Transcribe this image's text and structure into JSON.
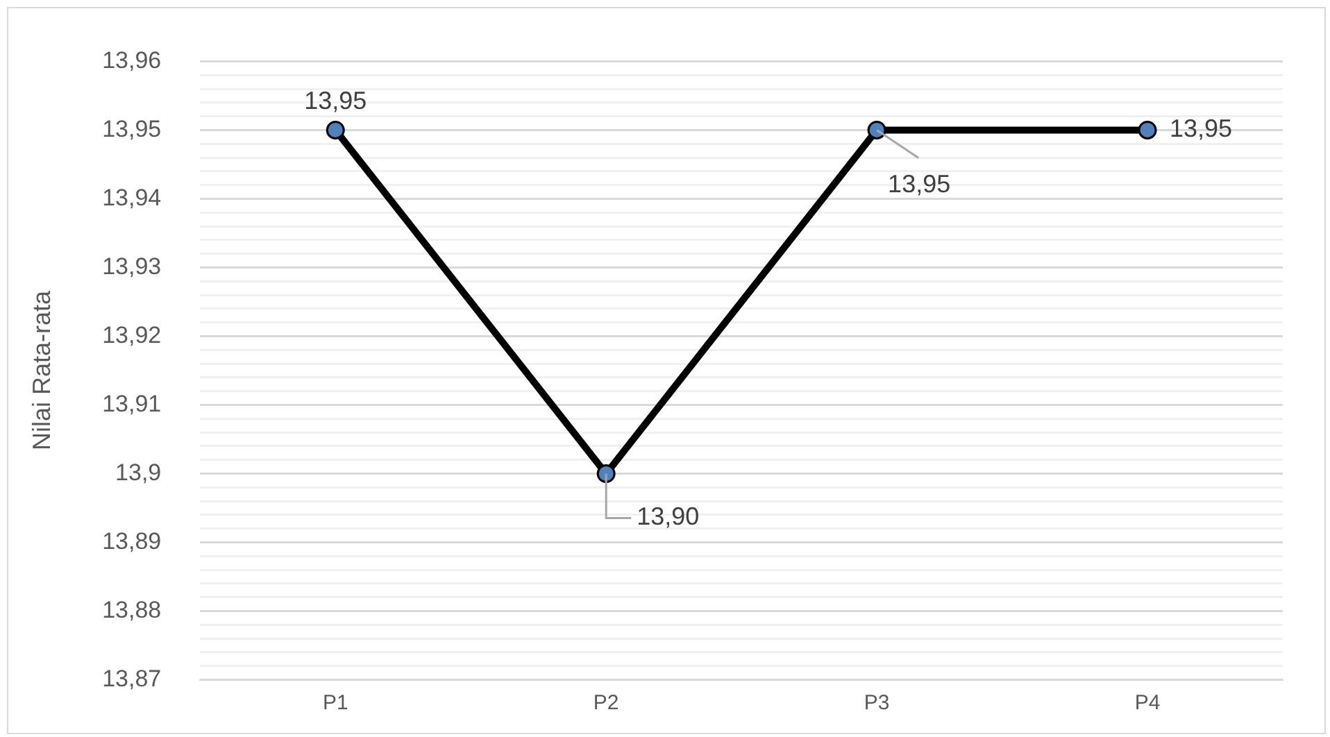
{
  "chart_data": {
    "type": "line",
    "ylabel": "Nilai Rata-rata",
    "categories": [
      "P1",
      "P2",
      "P3",
      "P4"
    ],
    "series": [
      {
        "color": "#000000",
        "colors": [
          "#4f81bd",
          "#4f81bd",
          "#4f81bd",
          "#4f81bd"
        ],
        "values": [
          13.95,
          13.9,
          13.95,
          13.95
        ],
        "value_labels": [
          "13,95",
          "13,90",
          "13,95",
          "13,95"
        ]
      }
    ],
    "ylim": [
      13.87,
      13.96
    ],
    "yticks": [
      {
        "value": 13.87,
        "label": "13,87"
      },
      {
        "value": 13.872,
        "label": null
      },
      {
        "value": 13.874,
        "label": null
      },
      {
        "value": 13.876,
        "label": null
      },
      {
        "value": 13.878,
        "label": null
      },
      {
        "value": 13.88,
        "label": "13,88"
      },
      {
        "value": 13.882,
        "label": null
      },
      {
        "value": 13.884,
        "label": null
      },
      {
        "value": 13.886,
        "label": null
      },
      {
        "value": 13.888,
        "label": null
      },
      {
        "value": 13.89,
        "label": "13,89"
      },
      {
        "value": 13.892,
        "label": null
      },
      {
        "value": 13.894,
        "label": null
      },
      {
        "value": 13.896,
        "label": null
      },
      {
        "value": 13.898,
        "label": null
      },
      {
        "value": 13.9,
        "label": "13,9"
      },
      {
        "value": 13.902,
        "label": null
      },
      {
        "value": 13.904,
        "label": null
      },
      {
        "value": 13.906,
        "label": null
      },
      {
        "value": 13.908,
        "label": null
      },
      {
        "value": 13.91,
        "label": "13,91"
      },
      {
        "value": 13.912,
        "label": null
      },
      {
        "value": 13.914,
        "label": null
      },
      {
        "value": 13.916,
        "label": null
      },
      {
        "value": 13.918,
        "label": null
      },
      {
        "value": 13.92,
        "label": "13,92"
      },
      {
        "value": 13.922,
        "label": null
      },
      {
        "value": 13.924,
        "label": null
      },
      {
        "value": 13.926,
        "label": null
      },
      {
        "value": 13.928,
        "label": null
      },
      {
        "value": 13.93,
        "label": "13,93"
      },
      {
        "value": 13.932,
        "label": null
      },
      {
        "value": 13.934,
        "label": null
      },
      {
        "value": 13.936,
        "label": null
      },
      {
        "value": 13.938,
        "label": null
      },
      {
        "value": 13.94,
        "label": "13,94"
      },
      {
        "value": 13.942,
        "label": null
      },
      {
        "value": 13.944,
        "label": null
      },
      {
        "value": 13.946,
        "label": null
      },
      {
        "value": 13.948,
        "label": null
      },
      {
        "value": 13.95,
        "label": "13,95"
      },
      {
        "value": 13.952,
        "label": null
      },
      {
        "value": 13.954,
        "label": null
      },
      {
        "value": 13.956,
        "label": null
      },
      {
        "value": 13.958,
        "label": null
      },
      {
        "value": 13.96,
        "label": "13,96"
      }
    ],
    "grid": "y",
    "legend": false,
    "marker": "circle",
    "line_style": "solid"
  }
}
